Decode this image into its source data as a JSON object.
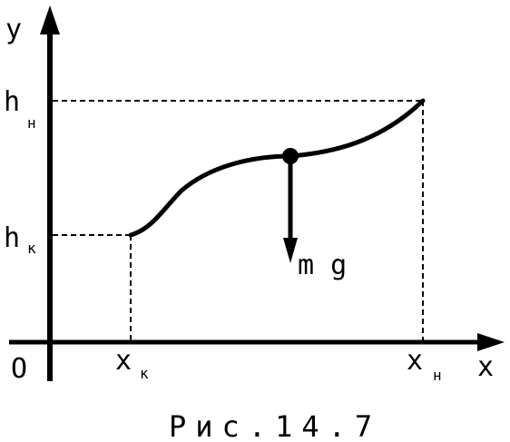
{
  "figure": {
    "caption": "Рис.14.7",
    "axes": {
      "x_label": "x",
      "y_label": "y",
      "origin_label": "O"
    },
    "points": {
      "h_high": {
        "main": "h",
        "sub": "н"
      },
      "h_low": {
        "main": "h",
        "sub": "к"
      },
      "x_low": {
        "main": "x",
        "sub": "к"
      },
      "x_high": {
        "main": "x",
        "sub": "н"
      }
    },
    "force_label": "m g",
    "colors": {
      "ink": "#000000",
      "background": "#ffffff"
    }
  }
}
